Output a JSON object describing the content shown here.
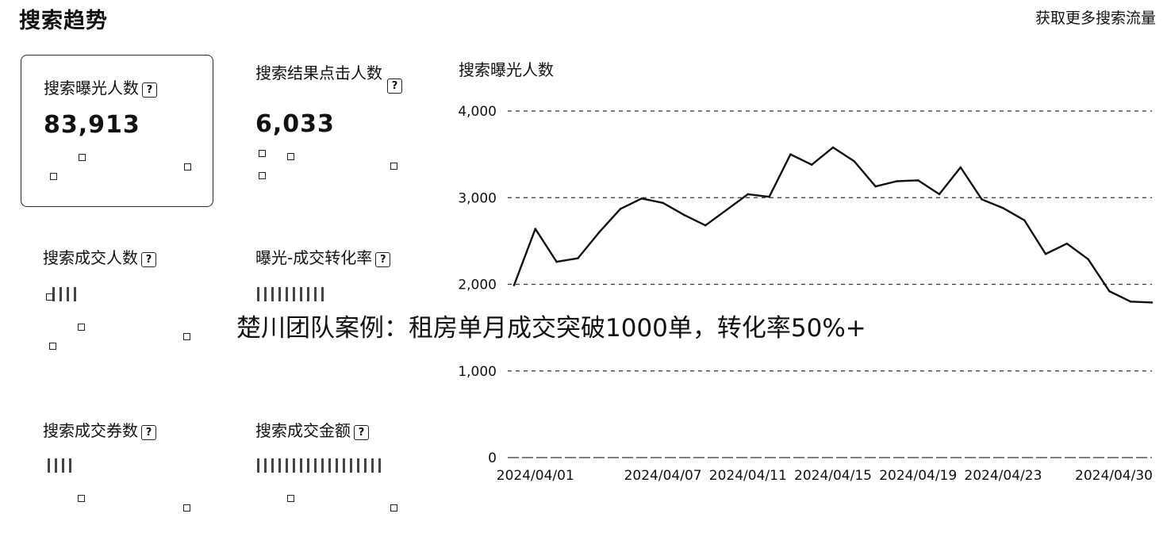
{
  "header": {
    "title": "搜索趋势",
    "more_link": "获取更多搜索流量"
  },
  "metrics": [
    {
      "label": "搜索曝光人数",
      "value": "83,913",
      "selected": true
    },
    {
      "label": "搜索结果点击人数",
      "value": "6,033",
      "selected": false
    },
    {
      "label": "搜索成交人数",
      "value": "",
      "selected": false
    },
    {
      "label": "曝光-成交转化率",
      "value": "",
      "selected": false
    },
    {
      "label": "搜索成交券数",
      "value": "",
      "selected": false
    },
    {
      "label": "搜索成交金额",
      "value": "",
      "selected": false
    }
  ],
  "help_glyph": "?",
  "overlay": {
    "text": "楚川团队案例：租房单月成交突破1000单，转化率50%+"
  },
  "chart_data": {
    "type": "line",
    "title": "搜索曝光人数",
    "y_ticks": [
      "4,000",
      "3,000",
      "2,000",
      "1,000",
      "0"
    ],
    "ylim": [
      0,
      4000
    ],
    "x_tick_labels": [
      "2024/04/01",
      "2024/04/07",
      "2024/04/11",
      "2024/04/15",
      "2024/04/19",
      "2024/04/23",
      "2024/04/30"
    ],
    "x": [
      "2024/03/31",
      "2024/04/01",
      "2024/04/02",
      "2024/04/03",
      "2024/04/04",
      "2024/04/05",
      "2024/04/06",
      "2024/04/07",
      "2024/04/08",
      "2024/04/09",
      "2024/04/10",
      "2024/04/11",
      "2024/04/12",
      "2024/04/13",
      "2024/04/14",
      "2024/04/15",
      "2024/04/16",
      "2024/04/17",
      "2024/04/18",
      "2024/04/19",
      "2024/04/20",
      "2024/04/21",
      "2024/04/22",
      "2024/04/23",
      "2024/04/24",
      "2024/04/25",
      "2024/04/26",
      "2024/04/27",
      "2024/04/28",
      "2024/04/29",
      "2024/04/30"
    ],
    "series": [
      {
        "values": [
          1990,
          2640,
          2260,
          2300,
          2600,
          2870,
          2990,
          2940,
          2800,
          2680,
          2860,
          3040,
          3010,
          3500,
          3380,
          3580,
          3420,
          3130,
          3190,
          3200,
          3040,
          3350,
          2980,
          2880,
          2740,
          2350,
          2470,
          2290,
          1920,
          1800,
          1790
        ]
      }
    ],
    "grid": true,
    "line_color": "#111111"
  }
}
